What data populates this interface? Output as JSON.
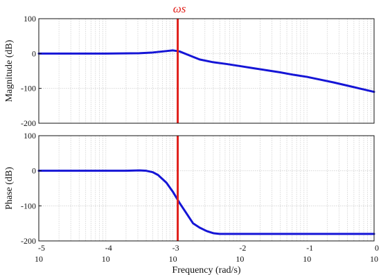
{
  "chart_data": [
    {
      "type": "line",
      "panel": "magnitude",
      "ylabel": "Magnitude (dB)",
      "ylim": [
        -200,
        100
      ],
      "y_ticks": [
        "100",
        "0",
        "-100",
        "-200"
      ],
      "x_scale": "log",
      "xlim_exponent": [
        -5,
        0
      ],
      "grid": true,
      "series": [
        {
          "color": "#1515d6",
          "x": [
            1e-05,
            3.16e-05,
            0.0001,
            0.000316,
            0.0005,
            0.00079,
            0.001,
            0.00126,
            0.0016,
            0.0025,
            0.004,
            0.0063,
            0.01,
            0.0158,
            0.0251,
            0.0398,
            0.0631,
            0.1,
            0.158,
            0.251,
            0.398,
            0.631,
            1
          ],
          "values": [
            0,
            0,
            0,
            1,
            3,
            7,
            9,
            6,
            -2,
            -17,
            -25,
            -30,
            -36,
            -42,
            -48,
            -54,
            -61,
            -67,
            -75,
            -83,
            -92,
            -101,
            -110
          ]
        }
      ],
      "marker": {
        "x": 0.00118,
        "label": "ωs",
        "color": "#e0201b"
      }
    },
    {
      "type": "line",
      "panel": "phase",
      "ylabel": "Phase (dB)",
      "xlabel": "Frequency (rad/s)",
      "ylim": [
        -200,
        100
      ],
      "y_ticks": [
        "100",
        "0",
        "-100",
        "-200"
      ],
      "x_scale": "log",
      "xlim_exponent": [
        -5,
        0
      ],
      "x_tick_base": "10",
      "x_tick_exponents": [
        "-5",
        "-4",
        "-3",
        "-2",
        "-1",
        "0"
      ],
      "grid": true,
      "series": [
        {
          "color": "#1515d6",
          "x": [
            1e-05,
            3.16e-05,
            0.0001,
            0.0002,
            0.00032,
            0.0004,
            0.0005,
            0.0006,
            0.0008,
            0.001,
            0.00126,
            0.0016,
            0.002,
            0.0025,
            0.0032,
            0.004,
            0.005,
            0.0063,
            0.01,
            0.0316,
            0.1,
            0.316,
            1
          ],
          "values": [
            0,
            0,
            0,
            0,
            1,
            0,
            -4,
            -12,
            -34,
            -60,
            -92,
            -122,
            -150,
            -162,
            -172,
            -178,
            -180,
            -180,
            -180,
            -180,
            -180,
            -180,
            -180
          ]
        }
      ],
      "marker": {
        "x": 0.00118,
        "color": "#e0201b"
      }
    }
  ]
}
